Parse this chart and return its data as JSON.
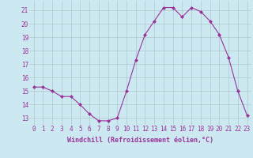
{
  "x": [
    0,
    1,
    2,
    3,
    4,
    5,
    6,
    7,
    8,
    9,
    10,
    11,
    12,
    13,
    14,
    15,
    16,
    17,
    18,
    19,
    20,
    21,
    22,
    23
  ],
  "y": [
    15.3,
    15.3,
    15.0,
    14.6,
    14.6,
    14.0,
    13.3,
    12.8,
    12.8,
    13.0,
    15.0,
    17.3,
    19.2,
    20.2,
    21.2,
    21.2,
    20.5,
    21.2,
    20.9,
    20.2,
    19.2,
    17.5,
    15.0,
    13.2
  ],
  "line_color": "#993399",
  "marker_color": "#993399",
  "bg_color": "#cce8f0",
  "grid_color": "#b0c8d0",
  "xlabel": "Windchill (Refroidissement éolien,°C)",
  "xlabel_color": "#993399",
  "ylabel_ticks": [
    13,
    14,
    15,
    16,
    17,
    18,
    19,
    20,
    21
  ],
  "xlim": [
    -0.5,
    23.5
  ],
  "ylim": [
    12.5,
    21.7
  ],
  "xtick_labels": [
    "0",
    "1",
    "2",
    "3",
    "4",
    "5",
    "6",
    "7",
    "8",
    "9",
    "10",
    "11",
    "12",
    "13",
    "14",
    "15",
    "16",
    "17",
    "18",
    "19",
    "20",
    "21",
    "22",
    "23"
  ],
  "tick_fontsize": 5.5,
  "xlabel_fontsize": 6.0
}
